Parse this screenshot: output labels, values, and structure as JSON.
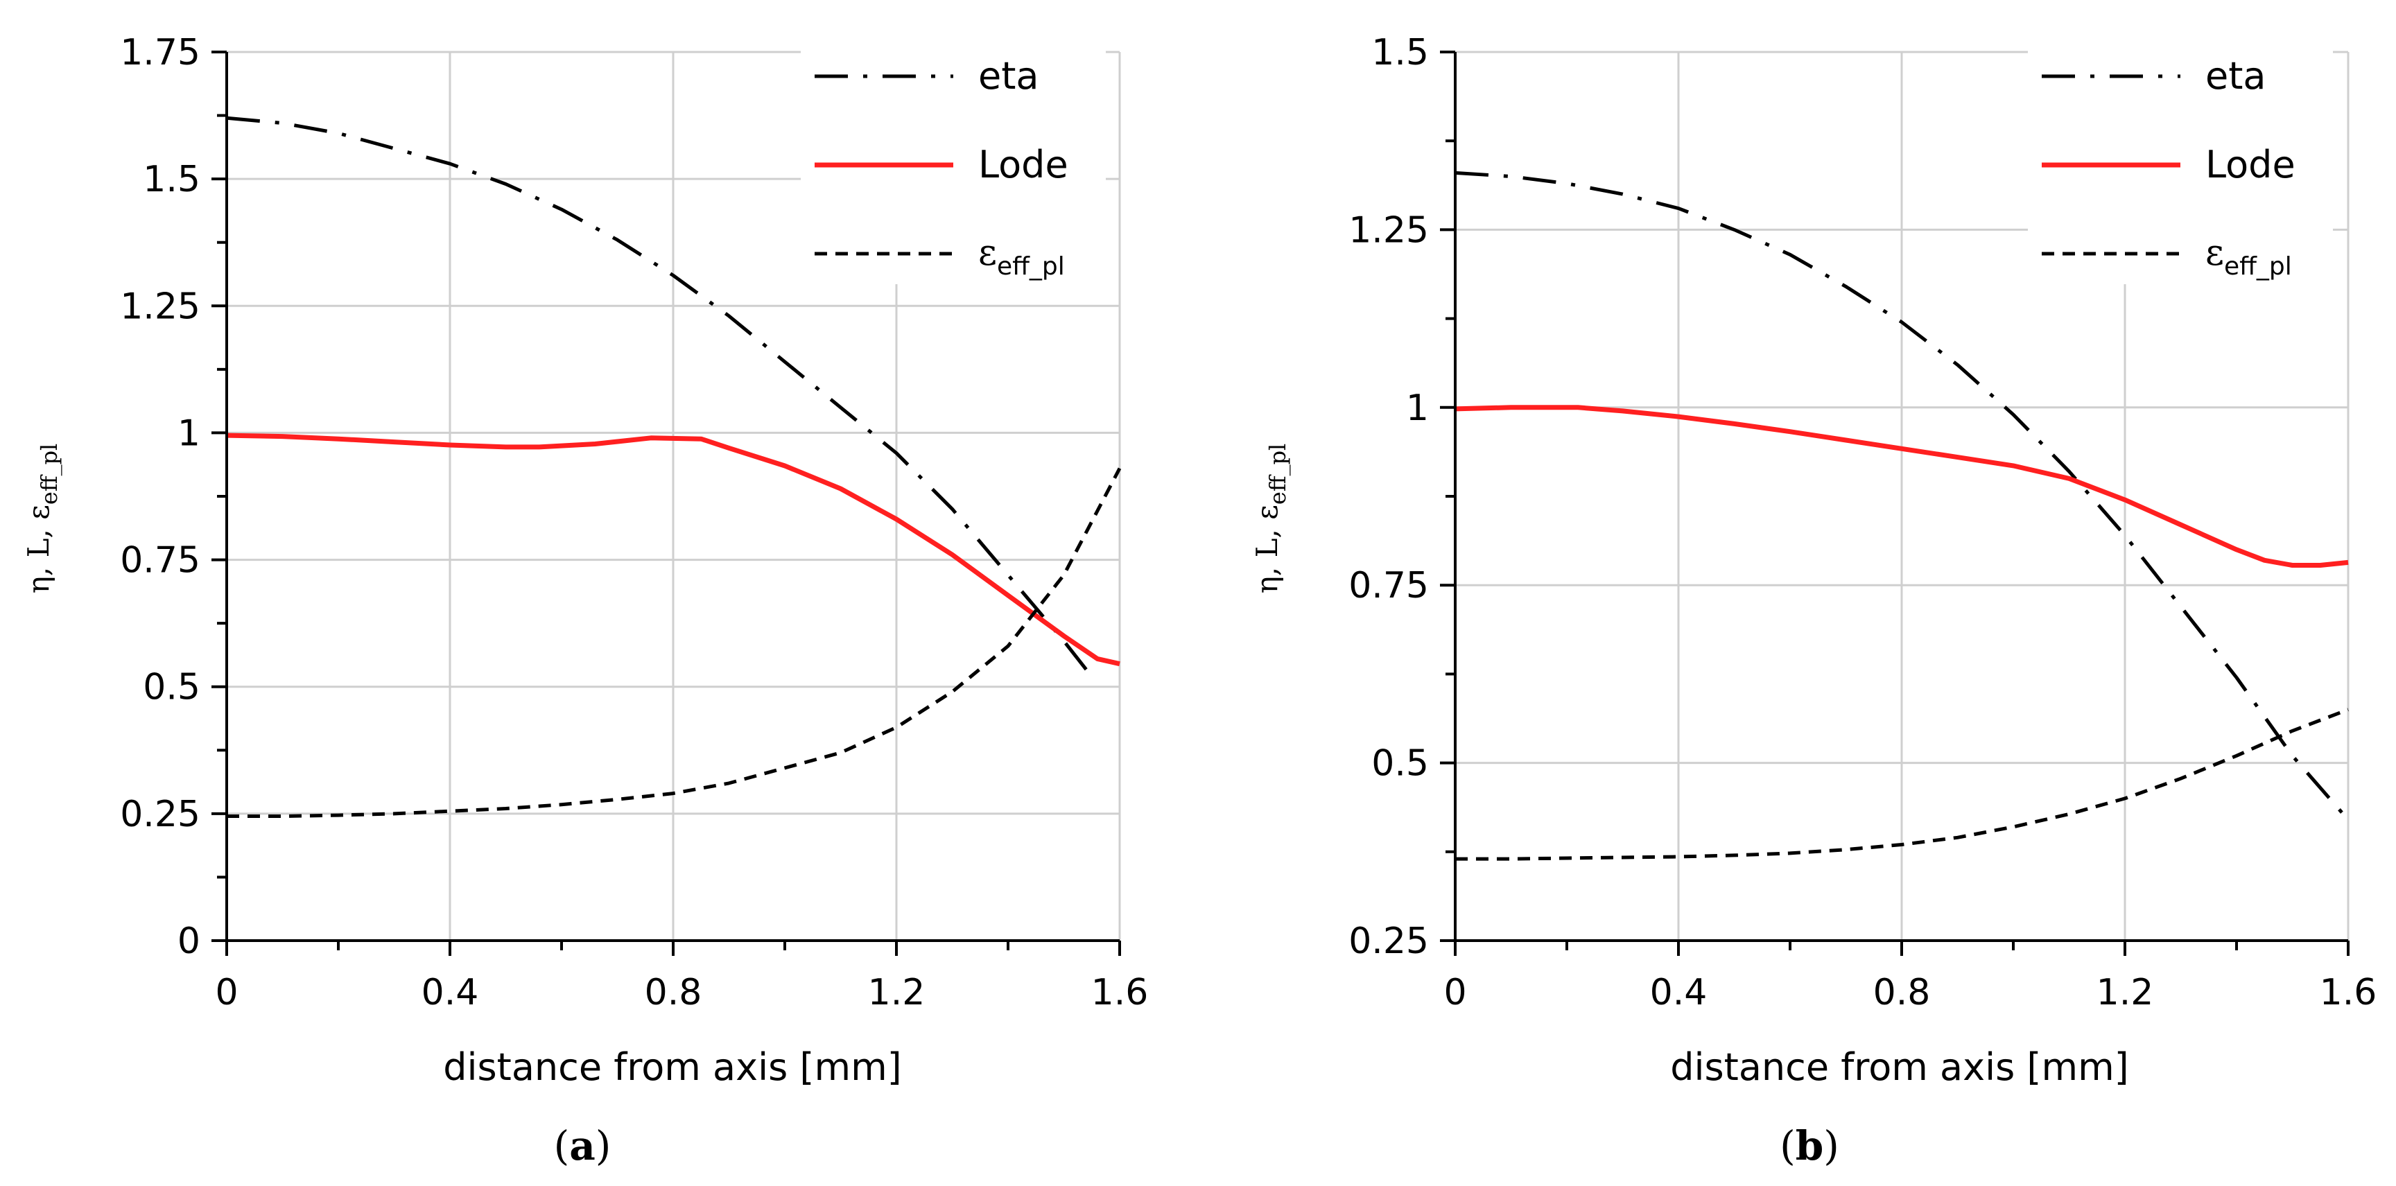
{
  "chart_data": [
    {
      "panel_label": "a",
      "type": "line",
      "xlabel": "distance from axis [mm]",
      "ylabel_parts": [
        "η, L, ε",
        "eff_pl"
      ],
      "xlim": [
        0,
        1.6
      ],
      "ylim": [
        0,
        1.75
      ],
      "x_ticks": [
        0,
        0.2,
        0.4,
        0.6,
        0.8,
        1.0,
        1.2,
        1.4,
        1.6
      ],
      "x_tick_labels": [
        "0",
        "0.4",
        "0.8",
        "1.2",
        "1.6"
      ],
      "x_tick_label_values": [
        0,
        0.4,
        0.8,
        1.2,
        1.6
      ],
      "y_ticks": [
        0,
        0.125,
        0.25,
        0.375,
        0.5,
        0.625,
        0.75,
        0.875,
        1.0,
        1.125,
        1.25,
        1.375,
        1.5,
        1.625,
        1.75
      ],
      "y_tick_labels": [
        "0",
        "0.25",
        "0.5",
        "0.75",
        "1",
        "1.25",
        "1.5",
        "1.75"
      ],
      "y_tick_label_values": [
        0,
        0.25,
        0.5,
        0.75,
        1.0,
        1.25,
        1.5,
        1.75
      ],
      "legend": {
        "eta": "eta",
        "lode": "Lode",
        "eps_main": "ε",
        "eps_sub": "eff_pl"
      },
      "series": [
        {
          "name": "eta",
          "style": "dashdot",
          "color": "#000000",
          "x": [
            0,
            0.1,
            0.2,
            0.3,
            0.4,
            0.5,
            0.6,
            0.7,
            0.8,
            0.9,
            1.0,
            1.1,
            1.2,
            1.3,
            1.4,
            1.5,
            1.55
          ],
          "y": [
            1.62,
            1.61,
            1.59,
            1.56,
            1.53,
            1.49,
            1.44,
            1.38,
            1.31,
            1.23,
            1.14,
            1.05,
            0.96,
            0.85,
            0.72,
            0.59,
            0.52
          ]
        },
        {
          "name": "Lode",
          "style": "solid",
          "color": "#ff2020",
          "x": [
            0,
            0.1,
            0.2,
            0.3,
            0.4,
            0.5,
            0.56,
            0.66,
            0.76,
            0.85,
            0.9,
            1.0,
            1.1,
            1.2,
            1.3,
            1.4,
            1.5,
            1.56,
            1.6
          ],
          "y": [
            0.995,
            0.993,
            0.988,
            0.982,
            0.976,
            0.972,
            0.972,
            0.978,
            0.99,
            0.988,
            0.97,
            0.935,
            0.89,
            0.83,
            0.76,
            0.68,
            0.6,
            0.555,
            0.545
          ]
        },
        {
          "name": "ε eff_pl",
          "style": "dashed",
          "color": "#000000",
          "x": [
            0,
            0.1,
            0.2,
            0.3,
            0.4,
            0.5,
            0.6,
            0.7,
            0.8,
            0.9,
            1.0,
            1.1,
            1.2,
            1.3,
            1.4,
            1.5,
            1.6
          ],
          "y": [
            0.245,
            0.245,
            0.247,
            0.25,
            0.255,
            0.26,
            0.268,
            0.278,
            0.29,
            0.31,
            0.34,
            0.37,
            0.42,
            0.49,
            0.58,
            0.72,
            0.93
          ]
        }
      ]
    },
    {
      "panel_label": "b",
      "type": "line",
      "xlabel": "distance from axis [mm]",
      "ylabel_parts": [
        "η, L, ε",
        "eff_pl"
      ],
      "xlim": [
        0,
        1.6
      ],
      "ylim": [
        0.25,
        1.5
      ],
      "x_ticks": [
        0,
        0.2,
        0.4,
        0.6,
        0.8,
        1.0,
        1.2,
        1.4,
        1.6
      ],
      "x_tick_labels": [
        "0",
        "0.4",
        "0.8",
        "1.2",
        "1.6"
      ],
      "x_tick_label_values": [
        0,
        0.4,
        0.8,
        1.2,
        1.6
      ],
      "y_ticks": [
        0.25,
        0.375,
        0.5,
        0.625,
        0.75,
        0.875,
        1.0,
        1.125,
        1.25,
        1.375,
        1.5
      ],
      "y_tick_labels": [
        "0.25",
        "0.5",
        "0.75",
        "1",
        "1.25",
        "1.5"
      ],
      "y_tick_label_values": [
        0.25,
        0.5,
        0.75,
        1.0,
        1.25,
        1.5
      ],
      "legend": {
        "eta": "eta",
        "lode": "Lode",
        "eps_main": "ε",
        "eps_sub": "eff_pl"
      },
      "series": [
        {
          "name": "eta",
          "style": "dashdot",
          "color": "#000000",
          "x": [
            0,
            0.1,
            0.2,
            0.3,
            0.4,
            0.5,
            0.6,
            0.7,
            0.8,
            0.9,
            1.0,
            1.1,
            1.2,
            1.3,
            1.4,
            1.5,
            1.6
          ],
          "y": [
            1.33,
            1.325,
            1.315,
            1.3,
            1.28,
            1.25,
            1.215,
            1.17,
            1.12,
            1.06,
            0.99,
            0.91,
            0.82,
            0.72,
            0.62,
            0.51,
            0.42
          ]
        },
        {
          "name": "Lode",
          "style": "solid",
          "color": "#ff2020",
          "x": [
            0,
            0.1,
            0.22,
            0.3,
            0.4,
            0.5,
            0.6,
            0.7,
            0.8,
            0.9,
            1.0,
            1.1,
            1.2,
            1.3,
            1.4,
            1.45,
            1.5,
            1.55,
            1.6
          ],
          "y": [
            0.998,
            1.0,
            1.0,
            0.995,
            0.987,
            0.977,
            0.966,
            0.954,
            0.942,
            0.93,
            0.918,
            0.9,
            0.87,
            0.835,
            0.8,
            0.785,
            0.778,
            0.778,
            0.782
          ]
        },
        {
          "name": "ε eff_pl",
          "style": "dashed",
          "color": "#000000",
          "x": [
            0,
            0.1,
            0.2,
            0.3,
            0.4,
            0.5,
            0.6,
            0.7,
            0.8,
            0.9,
            1.0,
            1.1,
            1.2,
            1.3,
            1.4,
            1.5,
            1.6
          ],
          "y": [
            0.365,
            0.365,
            0.366,
            0.367,
            0.368,
            0.37,
            0.373,
            0.378,
            0.385,
            0.395,
            0.41,
            0.428,
            0.45,
            0.478,
            0.51,
            0.545,
            0.575
          ]
        }
      ]
    }
  ]
}
